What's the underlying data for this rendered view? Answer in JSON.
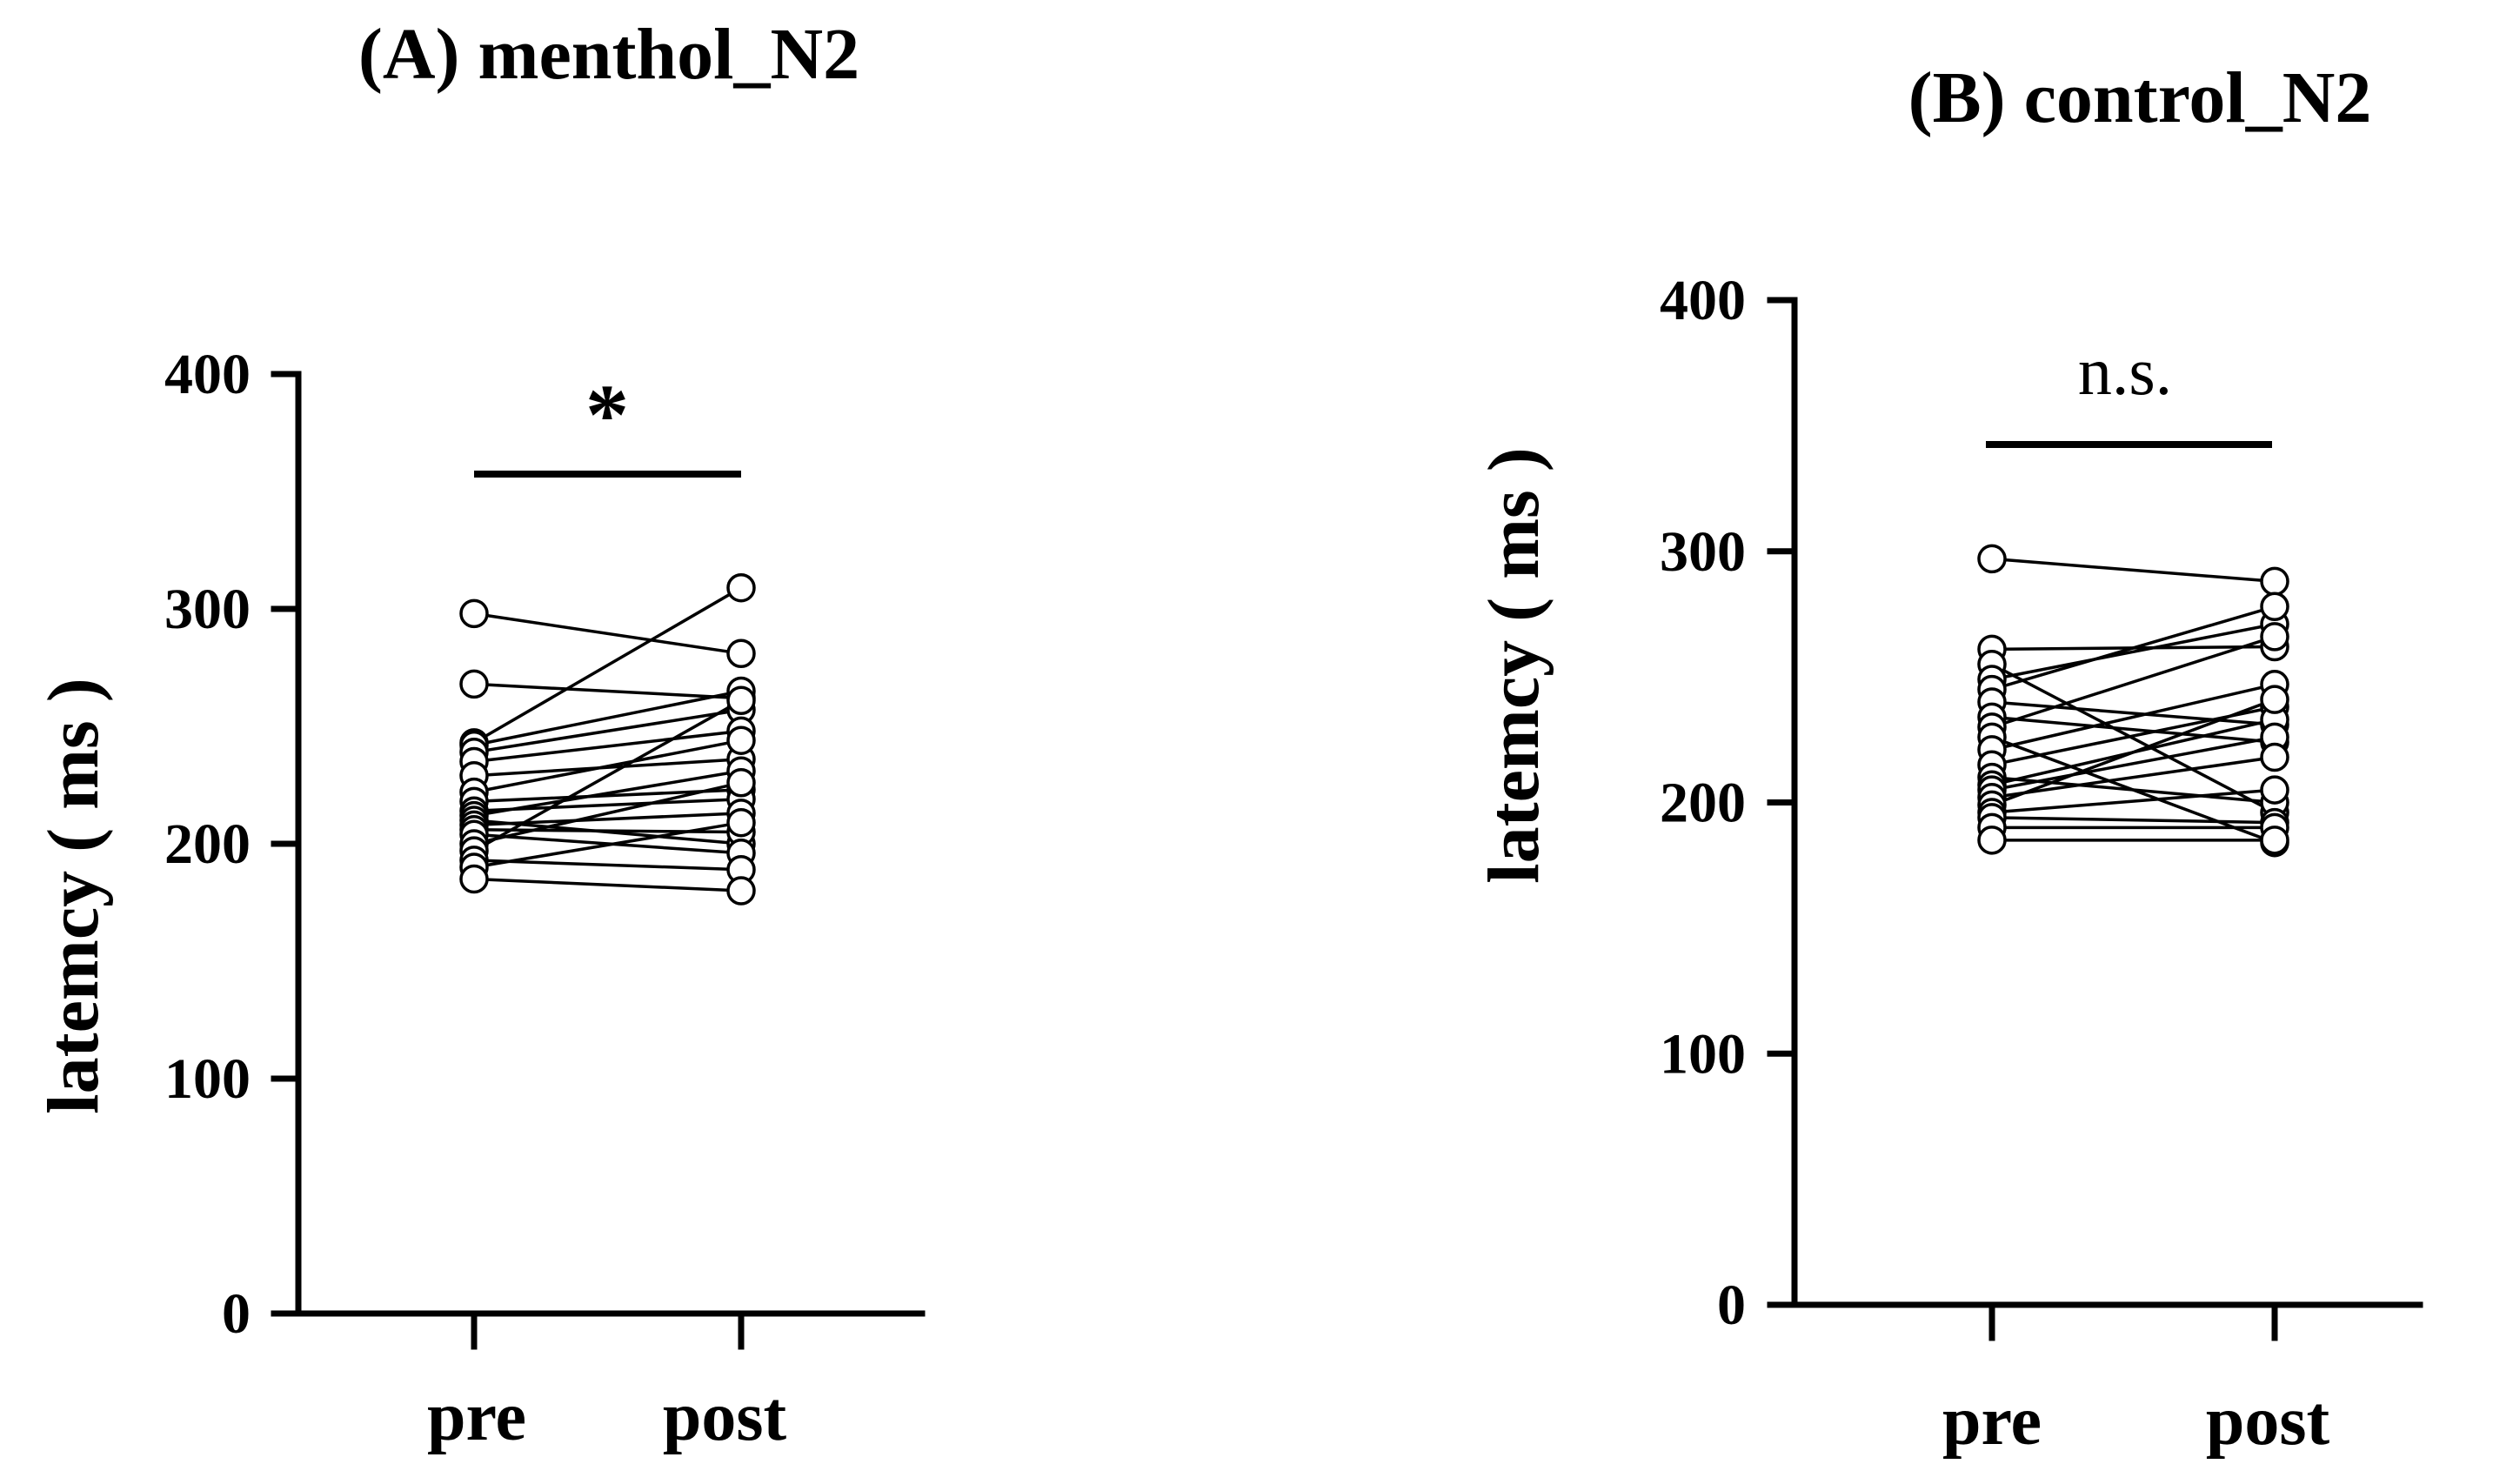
{
  "chart_data": [
    {
      "panel": "A",
      "type": "scatter",
      "subtype": "paired-dot-plot",
      "title": "(A) menthol_N2",
      "xlabel": "",
      "ylabel": "latemcy ( ms )",
      "categories": [
        "pre",
        "post"
      ],
      "ylim": [
        0,
        400
      ],
      "yticks": [
        0,
        100,
        200,
        300,
        400
      ],
      "significance": "*",
      "pairs": [
        [
          298,
          281
        ],
        [
          268,
          262
        ],
        [
          243,
          309
        ],
        [
          242,
          265
        ],
        [
          239,
          257
        ],
        [
          235,
          248
        ],
        [
          229,
          236
        ],
        [
          222,
          244
        ],
        [
          218,
          223
        ],
        [
          214,
          219
        ],
        [
          212,
          231
        ],
        [
          210,
          200
        ],
        [
          208,
          213
        ],
        [
          206,
          205
        ],
        [
          204,
          196
        ],
        [
          200,
          226
        ],
        [
          197,
          261
        ],
        [
          193,
          189
        ],
        [
          190,
          209
        ],
        [
          185,
          180
        ]
      ]
    },
    {
      "panel": "B",
      "type": "scatter",
      "subtype": "paired-dot-plot",
      "title": "(B) control_N2",
      "xlabel": "",
      "ylabel": "latemcy ( ms )",
      "categories": [
        "pre",
        "post"
      ],
      "ylim": [
        0,
        400
      ],
      "yticks": [
        0,
        100,
        200,
        300,
        400
      ],
      "significance": "n.s.",
      "pairs": [
        [
          297,
          288
        ],
        [
          261,
          262
        ],
        [
          255,
          196
        ],
        [
          249,
          271
        ],
        [
          245,
          278
        ],
        [
          240,
          231
        ],
        [
          234,
          224
        ],
        [
          230,
          266
        ],
        [
          226,
          184
        ],
        [
          221,
          247
        ],
        [
          215,
          238
        ],
        [
          210,
          200
        ],
        [
          207,
          233
        ],
        [
          205,
          226
        ],
        [
          202,
          218
        ],
        [
          199,
          241
        ],
        [
          196,
          205
        ],
        [
          194,
          192
        ],
        [
          190,
          190
        ],
        [
          185,
          185
        ]
      ]
    }
  ]
}
